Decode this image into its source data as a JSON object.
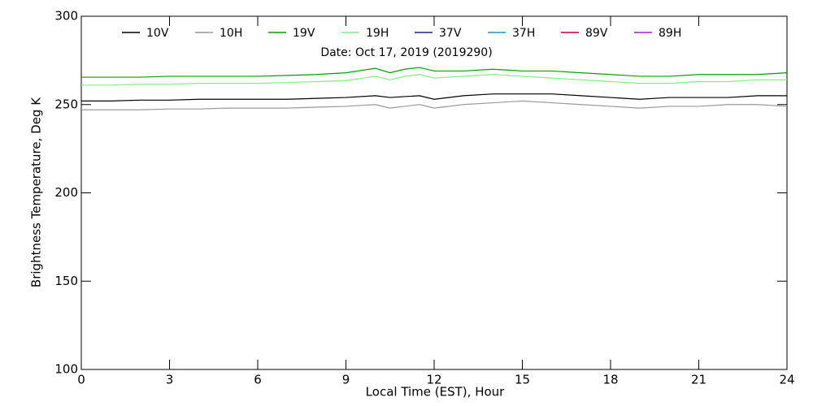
{
  "chart_data": {
    "type": "line",
    "title": "Date: Oct 17, 2019 (2019290)",
    "xlabel": "Local Time (EST), Hour",
    "ylabel": "Brightness Temperature, Deg K",
    "x": [
      0,
      1,
      2,
      3,
      4,
      5,
      6,
      7,
      8,
      9,
      10,
      10.5,
      11,
      11.5,
      12,
      13,
      14,
      15,
      16,
      17,
      18,
      19,
      20,
      21,
      22,
      23,
      24
    ],
    "series": [
      {
        "name": "10V",
        "color": "#000000",
        "values": [
          252,
          252,
          252.5,
          252.5,
          253,
          253,
          253,
          253,
          253.5,
          254,
          255,
          254,
          254.5,
          255,
          253,
          255,
          256,
          256,
          256,
          255,
          254,
          253,
          254,
          254,
          254,
          255,
          255
        ]
      },
      {
        "name": "10H",
        "color": "#999999",
        "values": [
          247,
          247,
          247,
          247.5,
          247.5,
          248,
          248,
          248,
          248.5,
          249,
          250,
          248,
          249,
          250,
          248,
          250,
          251,
          252,
          251,
          250,
          249,
          248,
          249,
          249,
          250,
          250,
          249
        ]
      },
      {
        "name": "19V",
        "color": "#00a000",
        "values": [
          265.5,
          265.5,
          265.5,
          266,
          266,
          266,
          266,
          266.5,
          267,
          268,
          270.5,
          268,
          270,
          271,
          269,
          269,
          270,
          269,
          269,
          268,
          267,
          266,
          266,
          267,
          267,
          267,
          268
        ]
      },
      {
        "name": "19H",
        "color": "#80f080",
        "values": [
          261,
          261,
          261.5,
          261.5,
          262,
          262,
          262,
          262.5,
          263,
          263.5,
          266,
          264,
          266,
          267,
          265,
          266,
          267,
          266,
          265,
          264,
          263,
          262,
          262,
          263,
          263,
          264,
          264
        ]
      },
      {
        "name": "37V",
        "color": "#202080",
        "values": [
          null,
          null,
          null,
          null,
          null,
          null,
          null,
          null,
          null,
          null,
          null,
          null,
          null,
          null,
          null,
          null,
          null,
          null,
          null,
          null,
          null,
          null,
          null,
          null,
          null,
          null,
          null
        ]
      },
      {
        "name": "37H",
        "color": "#2090c0",
        "values": [
          null,
          null,
          null,
          null,
          null,
          null,
          null,
          null,
          null,
          null,
          null,
          null,
          null,
          null,
          null,
          null,
          null,
          null,
          null,
          null,
          null,
          null,
          null,
          null,
          null,
          null,
          null
        ]
      },
      {
        "name": "89V",
        "color": "#c00030",
        "values": [
          null,
          null,
          null,
          null,
          null,
          null,
          null,
          null,
          null,
          null,
          null,
          null,
          null,
          null,
          null,
          null,
          null,
          null,
          null,
          null,
          null,
          null,
          null,
          null,
          null,
          null,
          null
        ]
      },
      {
        "name": "89H",
        "color": "#a020c0",
        "values": [
          null,
          null,
          null,
          null,
          null,
          null,
          null,
          null,
          null,
          null,
          null,
          null,
          null,
          null,
          null,
          null,
          null,
          null,
          null,
          null,
          null,
          null,
          null,
          null,
          null,
          null,
          null
        ]
      }
    ],
    "xlim": [
      0,
      24
    ],
    "xticks": [
      0,
      3,
      6,
      9,
      12,
      15,
      18,
      21,
      24
    ],
    "ylim": [
      100,
      300
    ],
    "yticks": [
      100,
      150,
      200,
      250,
      300
    ]
  }
}
